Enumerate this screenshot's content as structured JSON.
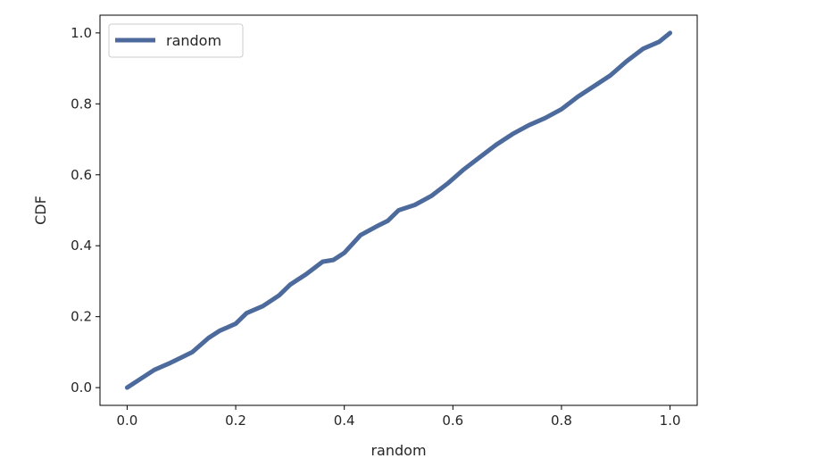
{
  "chart_data": {
    "type": "line",
    "xlabel": "random",
    "ylabel": "CDF",
    "xlim": [
      -0.05,
      1.05
    ],
    "ylim": [
      -0.05,
      1.05
    ],
    "xticks": [
      "0.0",
      "0.2",
      "0.4",
      "0.6",
      "0.8",
      "1.0"
    ],
    "yticks": [
      "0.0",
      "0.2",
      "0.4",
      "0.6",
      "0.8",
      "1.0"
    ],
    "grid": false,
    "legend": {
      "position": "top-left"
    },
    "series": [
      {
        "name": "random",
        "color": "#4c6a9c",
        "x": [
          0.0,
          0.02,
          0.05,
          0.08,
          0.1,
          0.12,
          0.15,
          0.17,
          0.2,
          0.22,
          0.25,
          0.28,
          0.3,
          0.33,
          0.36,
          0.38,
          0.4,
          0.43,
          0.46,
          0.48,
          0.5,
          0.53,
          0.56,
          0.59,
          0.62,
          0.65,
          0.68,
          0.71,
          0.74,
          0.77,
          0.8,
          0.83,
          0.86,
          0.89,
          0.92,
          0.95,
          0.98,
          1.0
        ],
        "y": [
          0.0,
          0.02,
          0.05,
          0.07,
          0.085,
          0.1,
          0.14,
          0.16,
          0.18,
          0.21,
          0.23,
          0.26,
          0.29,
          0.32,
          0.355,
          0.36,
          0.38,
          0.43,
          0.455,
          0.47,
          0.5,
          0.515,
          0.54,
          0.575,
          0.615,
          0.65,
          0.685,
          0.715,
          0.74,
          0.76,
          0.785,
          0.82,
          0.85,
          0.88,
          0.92,
          0.955,
          0.975,
          1.0
        ]
      }
    ]
  }
}
